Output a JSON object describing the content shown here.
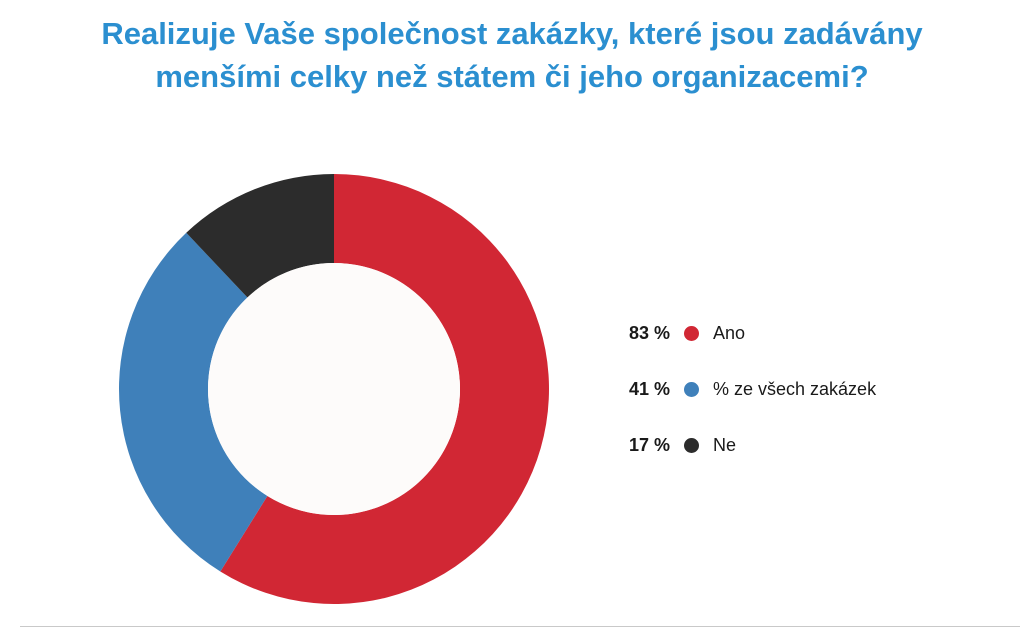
{
  "chart_data": {
    "type": "pie",
    "title_lines": [
      "Realizuje Vaše společnost zakázky, které jsou zadávány",
      "menšími celky než státem či jeho organizacemi?"
    ],
    "slices": [
      {
        "label": "Ano",
        "value_label": "83 %",
        "value": 83,
        "color": "#d12734"
      },
      {
        "label": "% ze všech zakázek",
        "value_label": "41 %",
        "value": 41,
        "color": "#3f80ba"
      },
      {
        "label": "Ne",
        "value_label": "17 %",
        "value": 17,
        "color": "#2c2c2c"
      }
    ],
    "legend_position": "right",
    "donut": true
  }
}
